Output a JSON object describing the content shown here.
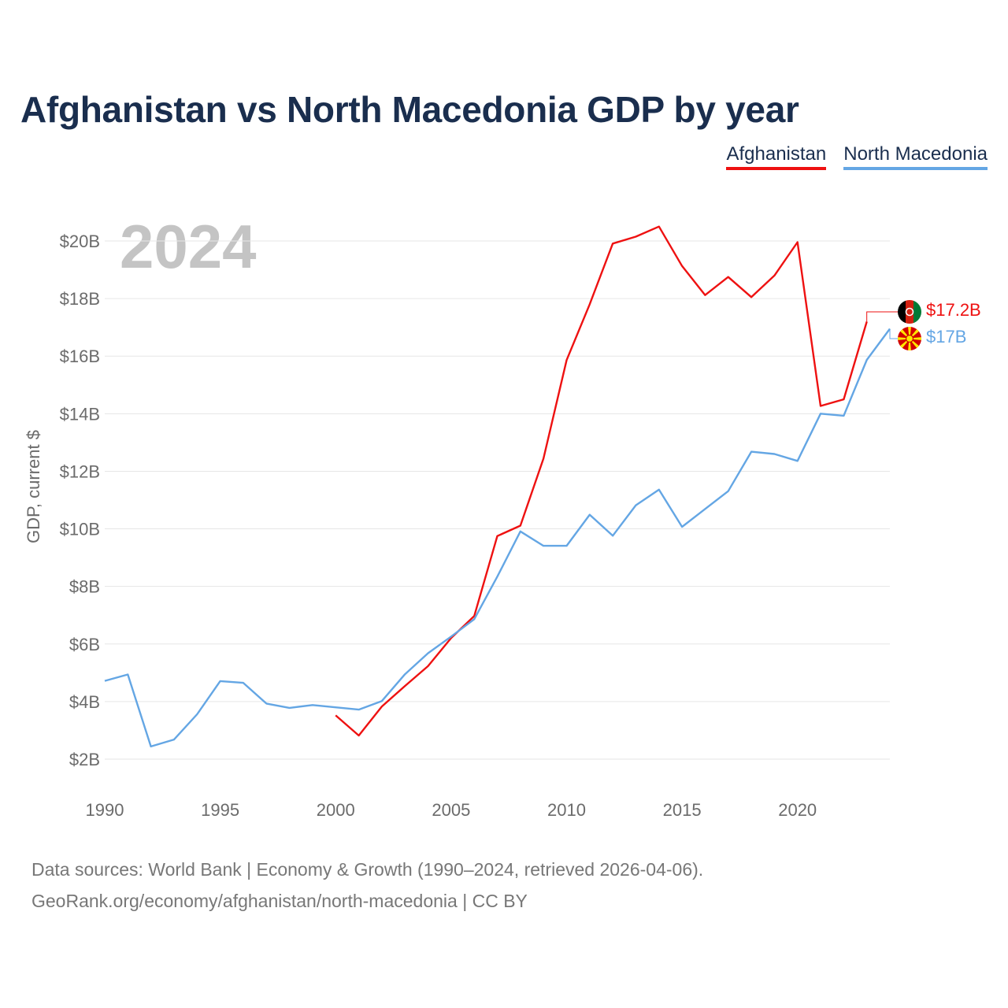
{
  "title": "Afghanistan vs North Macedonia GDP by year",
  "year_display": "2024",
  "legend": [
    {
      "name": "Afghanistan",
      "color": "#ee1111"
    },
    {
      "name": "North Macedonia",
      "color": "#64a6e4"
    }
  ],
  "source": {
    "line1": "Data sources: World Bank | Economy & Growth (1990–2024, retrieved 2026-04-06).",
    "line2": "GeoRank.org/economy/afghanistan/north-macedonia | CC BY"
  },
  "chart_data": {
    "type": "line",
    "title": "Afghanistan vs North Macedonia GDP by year",
    "xlabel": "",
    "ylabel": "GDP, current $",
    "xlim": [
      1990,
      2024
    ],
    "ylim": [
      1,
      21
    ],
    "x_ticks": [
      1990,
      1995,
      2000,
      2005,
      2010,
      2015,
      2020
    ],
    "y_ticks": [
      2,
      4,
      6,
      8,
      10,
      12,
      14,
      16,
      18,
      20
    ],
    "y_tick_labels": [
      "$2B",
      "$4B",
      "$6B",
      "$8B",
      "$10B",
      "$12B",
      "$14B",
      "$16B",
      "$18B",
      "$20B"
    ],
    "grid": true,
    "series": [
      {
        "name": "Afghanistan",
        "color": "#ee1111",
        "x": [
          2000,
          2001,
          2002,
          2003,
          2004,
          2005,
          2006,
          2007,
          2008,
          2009,
          2010,
          2011,
          2012,
          2013,
          2014,
          2015,
          2016,
          2017,
          2018,
          2019,
          2020,
          2021,
          2022,
          2023
        ],
        "values": [
          3.52,
          2.82,
          3.83,
          4.54,
          5.23,
          6.21,
          6.97,
          9.75,
          10.11,
          12.44,
          15.86,
          17.8,
          19.91,
          20.15,
          20.5,
          19.13,
          18.12,
          18.75,
          18.05,
          18.8,
          19.96,
          14.27,
          14.5,
          17.2
        ],
        "end_label": "$17.2B"
      },
      {
        "name": "North Macedonia",
        "color": "#64a6e4",
        "x": [
          1990,
          1991,
          1992,
          1993,
          1994,
          1995,
          1996,
          1997,
          1998,
          1999,
          2000,
          2001,
          2002,
          2003,
          2004,
          2005,
          2006,
          2007,
          2008,
          2009,
          2010,
          2011,
          2012,
          2013,
          2014,
          2015,
          2016,
          2017,
          2018,
          2019,
          2020,
          2021,
          2022,
          2023,
          2024
        ],
        "values": [
          4.72,
          4.94,
          2.44,
          2.68,
          3.56,
          4.71,
          4.65,
          3.93,
          3.78,
          3.88,
          3.8,
          3.72,
          4.02,
          4.95,
          5.68,
          6.26,
          6.86,
          8.34,
          9.91,
          9.41,
          9.41,
          10.49,
          9.76,
          10.82,
          11.36,
          10.07,
          10.69,
          11.31,
          12.68,
          12.6,
          12.36,
          14.0,
          13.93,
          15.87,
          16.95
        ],
        "end_label": "$17B"
      }
    ]
  }
}
